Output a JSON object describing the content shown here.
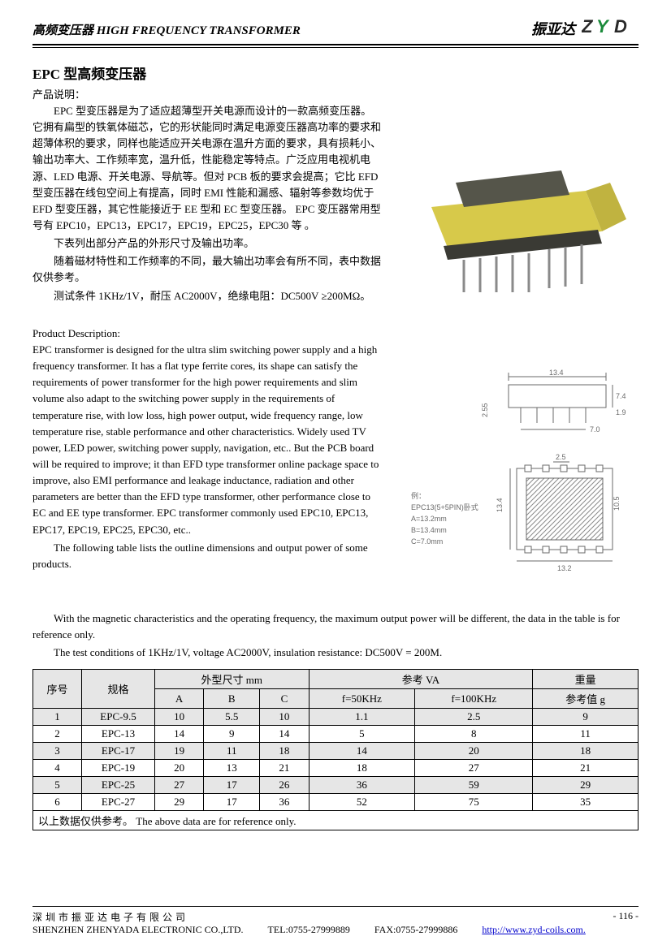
{
  "header": {
    "title_cn": "高频变压器",
    "title_en": "HIGH  FREQUENCY  TRANSFORMER",
    "brand_cn": "振亚达",
    "logo_text": "ZYD",
    "logo_color_z": "#2a2a2a",
    "logo_color_y": "#2a2a2a",
    "logo_color_d": "#1a8a3a"
  },
  "section": {
    "title": "EPC 型高频变压器",
    "subhead_cn": "产品说明：",
    "para_cn_1": "EPC 型变压器是为了适应超薄型开关电源而设计的一款高频变压器。它拥有扁型的铁氧体磁芯，它的形状能同时满足电源变压器高功率的要求和超薄体积的要求，同样也能适应开关电源在温升方面的要求，具有损耗小、输出功率大、工作频率宽，温升低，性能稳定等特点。广泛应用电视机电源、LED 电源、开关电源、导航等。但对 PCB 板的要求会提高；它比 EFD 型变压器在线包空间上有提高，同时 EMI 性能和漏感、辐射等参数均优于 EFD 型变压器，其它性能接近于 EE 型和 EC 型变压器。 EPC 变压器常用型号有 EPC10，EPC13，EPC17，EPC19，EPC25，EPC30 等 。",
    "para_cn_2": "下表列出部分产品的外形尺寸及输出功率。",
    "para_cn_3": "随着磁材特性和工作频率的不同，最大输出功率会有所不同，表中数据仅供参考。",
    "para_cn_4": "测试条件 1KHz/1V，耐压 AC2000V，绝缘电阻：DC500V  ≥200MΩ。",
    "subhead_en": "Product Description:",
    "para_en_1": "EPC transformer is designed for the ultra slim switching power supply and a high frequency transformer. It has a flat type ferrite cores, its shape can satisfy the requirements of power transformer for the high power requirements and slim volume also adapt to the switching power supply in the requirements of temperature rise, with low loss, high power output, wide frequency range, low temperature rise, stable performance and other characteristics. Widely used TV power, LED power, switching power supply, navigation, etc.. But the PCB board will be required to improve; it than EFD type transformer online package space to improve, also EMI performance and leakage inductance, radiation and other parameters are better than the EFD type transformer, other performance close to EC and EE type transformer. EPC transformer commonly used EPC10, EPC13, EPC17, EPC19, EPC25, EPC30, etc..",
    "para_en_2": "The following table lists the outline dimensions and output power of some products.",
    "para_en_3": "With the magnetic characteristics and the operating frequency, the maximum output power will be different, the data in the table is for reference only.",
    "para_en_4": "The test conditions of 1KHz/1V, voltage AC2000V, insulation resistance: DC500V = 200M."
  },
  "diagram": {
    "example_label": "例：",
    "example_model": "EPC13(5+5PIN)卧式",
    "dim_a": "A=13.2mm",
    "dim_b": "B=13.4mm",
    "dim_c": "C=7.0mm",
    "top_w": "13.4",
    "top_h": "7.4",
    "top_left_h": "2.55",
    "top_right_h": "1.9",
    "top_base": "7.0",
    "bot_top": "2.5",
    "bot_w": "13.2",
    "bot_h": "13.4",
    "bot_right": "10.5"
  },
  "table": {
    "header": {
      "col_seq": "序号",
      "col_spec": "规格",
      "col_dim": "外型尺寸 mm",
      "col_va": "参考 VA",
      "col_weight": "重量",
      "sub_a": "A",
      "sub_b": "B",
      "sub_c": "C",
      "sub_f50": "f=50KHz",
      "sub_f100": "f=100KHz",
      "sub_wref": "参考值 g"
    },
    "rows": [
      {
        "seq": "1",
        "spec": "EPC-9.5",
        "a": "10",
        "b": "5.5",
        "c": "10",
        "f50": "1.1",
        "f100": "2.5",
        "w": "9",
        "shaded": true
      },
      {
        "seq": "2",
        "spec": "EPC-13",
        "a": "14",
        "b": "9",
        "c": "14",
        "f50": "5",
        "f100": "8",
        "w": "11",
        "shaded": false
      },
      {
        "seq": "3",
        "spec": "EPC-17",
        "a": "19",
        "b": "11",
        "c": "18",
        "f50": "14",
        "f100": "20",
        "w": "18",
        "shaded": true
      },
      {
        "seq": "4",
        "spec": "EPC-19",
        "a": "20",
        "b": "13",
        "c": "21",
        "f50": "18",
        "f100": "27",
        "w": "21",
        "shaded": false
      },
      {
        "seq": "5",
        "spec": "EPC-25",
        "a": "27",
        "b": "17",
        "c": "26",
        "f50": "36",
        "f100": "59",
        "w": "29",
        "shaded": true
      },
      {
        "seq": "6",
        "spec": "EPC-27",
        "a": "29",
        "b": "17",
        "c": "36",
        "f50": "52",
        "f100": "75",
        "w": "35",
        "shaded": false
      }
    ],
    "note_cn": "以上数据仅供参考。",
    "note_en": "The above data are for reference only."
  },
  "footer": {
    "company_cn": "深圳市振亚达电子有限公司",
    "company_en": "SHENZHEN ZHENYADA ELECTRONIC CO.,LTD.",
    "tel_label": "TEL:",
    "tel": "0755-27999889",
    "fax_label": "FAX:",
    "fax": "0755-27999886",
    "url": "http://www.zyd-coils.com.",
    "page": "- 116 -"
  },
  "colors": {
    "transformer_yellow": "#d7c94a",
    "transformer_dark": "#4a4a42",
    "pin_gray": "#9a9a9a",
    "diagram_stroke": "#6a6a6a",
    "hatch": "#8a8a8a"
  }
}
